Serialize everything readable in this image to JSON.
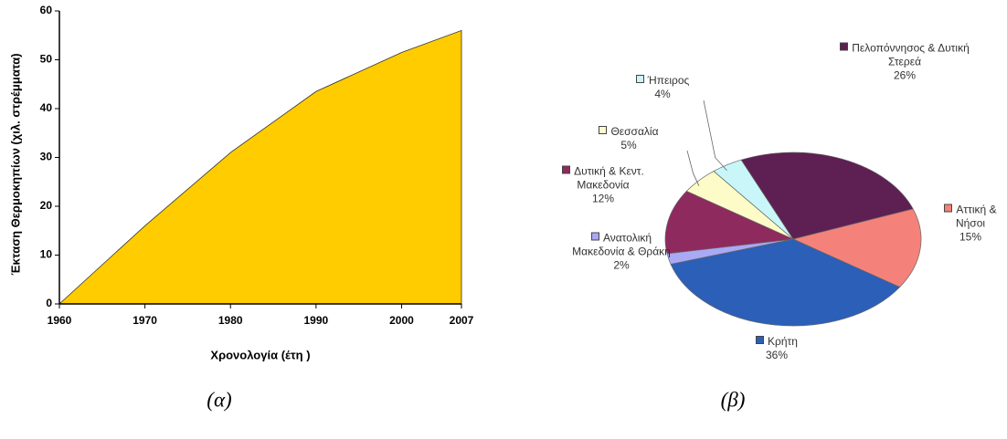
{
  "chart_data": [
    {
      "type": "area",
      "x": [
        1960,
        1970,
        1980,
        1990,
        2000,
        2007
      ],
      "values": [
        0,
        16,
        31,
        43.5,
        51.5,
        56
      ],
      "color": "#ffcc00",
      "xlim": [
        1960,
        2007
      ],
      "xticks": [
        1960,
        1970,
        1980,
        1990,
        2000,
        2007
      ],
      "ylim": [
        0,
        60
      ],
      "yticks": [
        0,
        10,
        20,
        30,
        40,
        50,
        60
      ],
      "xlabel": "Χρονολογία (έτη )",
      "ylabel": "Έκταση Θερμοκηπίων (χιλ. στρέμματα)",
      "caption": "(α)"
    },
    {
      "type": "pie",
      "categories": [
        "Πελοπόννησος & Δυτική Στερεά",
        "Αττική & Νήσοι",
        "Κρήτη",
        "Ανατολική Μακεδονία & Θράκη",
        "Δυτική & Κεντ. Μακεδονία",
        "Θεσσαλία",
        "Ήπειρος"
      ],
      "values": [
        26,
        15,
        36,
        2,
        12,
        5,
        4
      ],
      "value_labels": [
        "26%",
        "15%",
        "36%",
        "2%",
        "12%",
        "5%",
        "4%"
      ],
      "colors": [
        "#5e1f52",
        "#f4827a",
        "#2b5fb8",
        "#a9a9f5",
        "#8f2a5e",
        "#fdfbc8",
        "#c9f7f9"
      ],
      "caption": "(β)"
    }
  ]
}
